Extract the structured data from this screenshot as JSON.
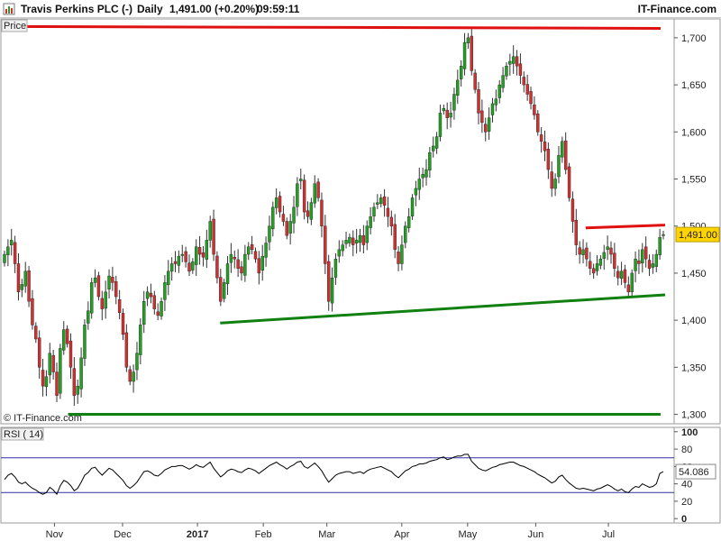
{
  "header": {
    "instrument": "Travis Perkins PLC (-)",
    "period": "Daily",
    "quote": "1,491.00 (+0.20%)",
    "time": "09:59:11",
    "brand": "IT-Finance.com"
  },
  "price_panel": {
    "label": "Price",
    "watermark": "© IT-Finance.com",
    "last_label": "1,491.00"
  },
  "rsi_panel": {
    "label": "RSI ( 14)",
    "last_label": "54.086"
  },
  "colors": {
    "up": "#22a022",
    "down": "#d03030",
    "resistance": "#e01010",
    "support": "#108010",
    "rsi_line": "#000000",
    "rsi_bands": "#3030a0"
  },
  "chart_data": [
    {
      "type": "candlestick",
      "title": "Travis Perkins PLC (-) Daily",
      "ylabel": "Price",
      "ylim": [
        1290,
        1720
      ],
      "yticks": [
        "1,300",
        "1,350",
        "1,400",
        "1,450",
        "1,500",
        "1,550",
        "1,600",
        "1,650",
        "1,700"
      ],
      "ytick_values": [
        1300,
        1350,
        1400,
        1450,
        1500,
        1550,
        1600,
        1650,
        1700
      ],
      "x_labels": [
        {
          "label": "Nov",
          "date": "2016-11-01"
        },
        {
          "label": "Dec",
          "date": "2016-12-01"
        },
        {
          "label": "2017",
          "date": "2017-01-03"
        },
        {
          "label": "Feb",
          "date": "2017-02-01"
        },
        {
          "label": "Mar",
          "date": "2017-03-01"
        },
        {
          "label": "Apr",
          "date": "2017-04-03"
        },
        {
          "label": "May",
          "date": "2017-05-02"
        },
        {
          "label": "Jun",
          "date": "2017-06-01"
        },
        {
          "label": "Jul",
          "date": "2017-07-03"
        }
      ],
      "date_range": [
        "2016-10-10",
        "2017-07-28"
      ],
      "close": [
        1470,
        1478,
        1485,
        1460,
        1430,
        1438,
        1452,
        1420,
        1395,
        1380,
        1350,
        1330,
        1340,
        1365,
        1345,
        1320,
        1370,
        1390,
        1375,
        1350,
        1320,
        1330,
        1360,
        1395,
        1410,
        1440,
        1445,
        1425,
        1412,
        1430,
        1447,
        1440,
        1425,
        1408,
        1385,
        1350,
        1335,
        1345,
        1365,
        1395,
        1420,
        1430,
        1425,
        1412,
        1405,
        1420,
        1440,
        1452,
        1460,
        1460,
        1468,
        1470,
        1462,
        1452,
        1462,
        1478,
        1470,
        1467,
        1485,
        1505,
        1470,
        1445,
        1420,
        1440,
        1460,
        1470,
        1465,
        1455,
        1450,
        1470,
        1478,
        1475,
        1465,
        1450,
        1468,
        1482,
        1500,
        1520,
        1530,
        1515,
        1505,
        1490,
        1505,
        1520,
        1545,
        1550,
        1515,
        1510,
        1525,
        1545,
        1530,
        1500,
        1460,
        1420,
        1445,
        1465,
        1475,
        1480,
        1485,
        1488,
        1480,
        1485,
        1490,
        1480,
        1500,
        1510,
        1520,
        1525,
        1530,
        1522,
        1510,
        1500,
        1475,
        1460,
        1480,
        1500,
        1510,
        1530,
        1540,
        1550,
        1555,
        1560,
        1578,
        1585,
        1595,
        1620,
        1625,
        1615,
        1620,
        1640,
        1655,
        1670,
        1695,
        1700,
        1665,
        1645,
        1620,
        1610,
        1600,
        1615,
        1630,
        1635,
        1650,
        1660,
        1670,
        1675,
        1680,
        1670,
        1660,
        1650,
        1640,
        1630,
        1618,
        1600,
        1590,
        1580,
        1560,
        1540,
        1550,
        1575,
        1590,
        1560,
        1530,
        1505,
        1480,
        1470,
        1475,
        1465,
        1455,
        1450,
        1460,
        1465,
        1472,
        1478,
        1470,
        1455,
        1445,
        1452,
        1440,
        1430,
        1450,
        1465,
        1460,
        1475,
        1465,
        1455,
        1460,
        1470,
        1488,
        1491
      ],
      "support_lines": [
        {
          "from": [
            "2016-11-07",
            1300
          ],
          "to": [
            "2017-07-26",
            1300
          ]
        },
        {
          "from": [
            "2017-01-13",
            1397
          ],
          "to": [
            "2017-07-28",
            1427
          ]
        }
      ],
      "resistance_lines": [
        {
          "from": [
            "2016-10-10",
            1712
          ],
          "to": [
            "2017-07-26",
            1710
          ]
        },
        {
          "from": [
            "2017-06-23",
            1498
          ],
          "to": [
            "2017-07-28",
            1501
          ]
        }
      ],
      "last_value": 1491.0,
      "grid": false
    },
    {
      "type": "line",
      "title": "RSI ( 14)",
      "ylim": [
        -5,
        105
      ],
      "yticks": [
        "100",
        "80",
        "60",
        "40",
        "20",
        "0"
      ],
      "ytick_values": [
        100,
        80,
        60,
        40,
        20,
        0
      ],
      "bands": [
        70,
        30
      ],
      "values": [
        45,
        50,
        52,
        48,
        42,
        40,
        42,
        38,
        35,
        33,
        30,
        28,
        30,
        36,
        33,
        28,
        38,
        44,
        42,
        38,
        32,
        35,
        42,
        50,
        53,
        58,
        59,
        54,
        50,
        54,
        58,
        56,
        52,
        48,
        44,
        38,
        35,
        38,
        42,
        48,
        54,
        55,
        53,
        50,
        49,
        52,
        56,
        58,
        60,
        60,
        61,
        61,
        59,
        57,
        59,
        62,
        60,
        59,
        62,
        65,
        58,
        53,
        48,
        51,
        55,
        57,
        56,
        54,
        53,
        56,
        58,
        57,
        55,
        52,
        55,
        58,
        61,
        63,
        65,
        62,
        60,
        57,
        60,
        62,
        65,
        66,
        60,
        58,
        61,
        64,
        60,
        55,
        48,
        42,
        46,
        50,
        52,
        53,
        54,
        54,
        52,
        53,
        54,
        52,
        55,
        57,
        58,
        59,
        60,
        58,
        56,
        54,
        50,
        47,
        51,
        55,
        57,
        60,
        61,
        63,
        63,
        64,
        66,
        67,
        68,
        70,
        71,
        68,
        69,
        71,
        72,
        72,
        74,
        74,
        66,
        62,
        58,
        56,
        55,
        57,
        59,
        60,
        62,
        63,
        64,
        65,
        65,
        63,
        61,
        60,
        58,
        56,
        54,
        51,
        49,
        47,
        44,
        41,
        43,
        48,
        50,
        45,
        41,
        38,
        35,
        34,
        35,
        34,
        33,
        32,
        34,
        35,
        37,
        39,
        37,
        34,
        32,
        34,
        31,
        30,
        34,
        37,
        36,
        40,
        38,
        36,
        37,
        40,
        52,
        54.086
      ],
      "last_value": 54.086,
      "grid": false
    }
  ]
}
